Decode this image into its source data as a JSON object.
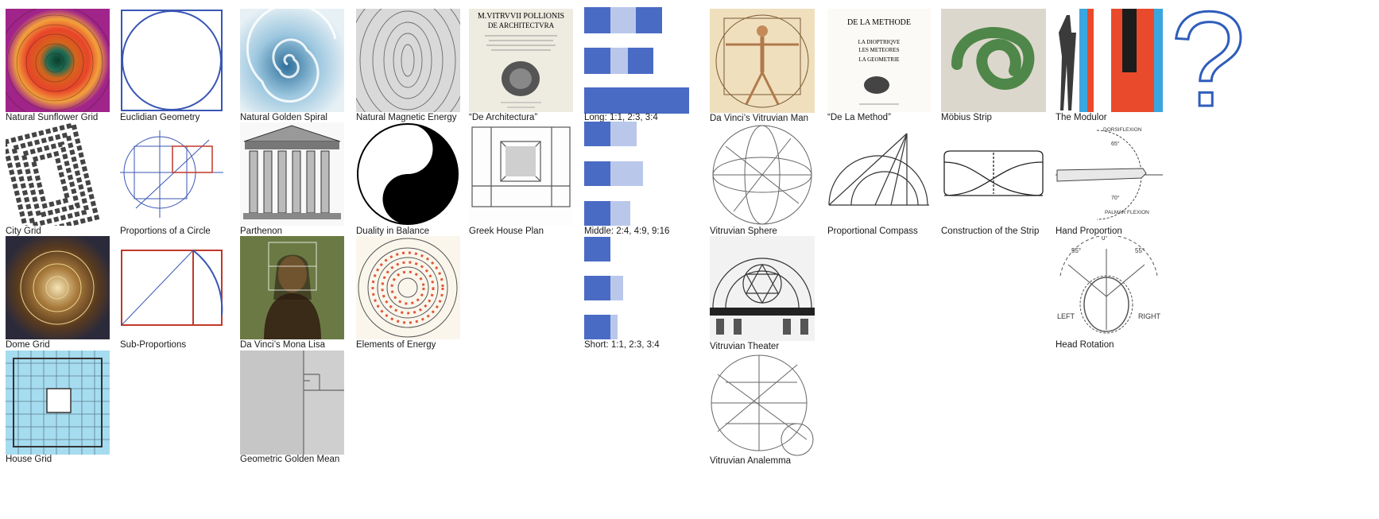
{
  "captions": {
    "sunflower": "Natural Sunflower Grid",
    "euclid": "Euclidian Geometry",
    "spiral": "Natural Golden Spiral",
    "magnetic": "Natural Magnetic Energy",
    "de_arch": "“De Architectura”",
    "vitruvian_man": "Da Vinci’s Vitruvian Man",
    "methode": "“De La Method”",
    "mobius": "Möbius Strip",
    "modulor": "The Modulor",
    "city": "City Grid",
    "circle": "Proportions of a Circle",
    "parthenon": "Parthenon",
    "duality": "Duality in Balance",
    "greek_house": "Greek House Plan",
    "v_sphere": "Vitruvian Sphere",
    "compass": "Proportional Compass",
    "strip": "Construction of the Strip",
    "hand": "Hand Proportion",
    "dome": "Dome Grid",
    "sub": "Sub-Proportions",
    "mona": "Da Vinci’s Mona Lisa",
    "energy": "Elements of Energy",
    "v_theater": "Vitruvian Theater",
    "head": "Head Rotation",
    "house": "House Grid",
    "golden_mean": "Geometric Golden Mean",
    "analemma": "Vitruvian Analemma"
  },
  "ratios": {
    "long": "Long: 1:1, 2:3, 3:4",
    "middle": "Middle: 2:4, 4:9, 9:16",
    "short": "Short: 1:1, 2:3, 3:4"
  },
  "texts": {
    "de_arch_line1": "M.VITRVVII POLLIONIS",
    "de_arch_line2": "DE ARCHITECTVRA",
    "methode_line1": "DE LA METHODE",
    "methode_line2": "LA DIOPTRIQVE",
    "methode_line3": "LES METEORES",
    "methode_line4": "LA GEOMETRIE",
    "hand_top": "DORSIFLEXION",
    "hand_65": "65°",
    "hand_70": "70°",
    "hand_bottom": "PALMAR FLEXION",
    "head_0": "0°",
    "head_55l": "55°",
    "head_55r": "55°",
    "head_left": "LEFT",
    "head_right": "RIGHT",
    "question": "?"
  },
  "colors": {
    "accent_blue": "#4a6bc4",
    "light_blue": "#b9c7ea",
    "red": "#c0392b"
  }
}
